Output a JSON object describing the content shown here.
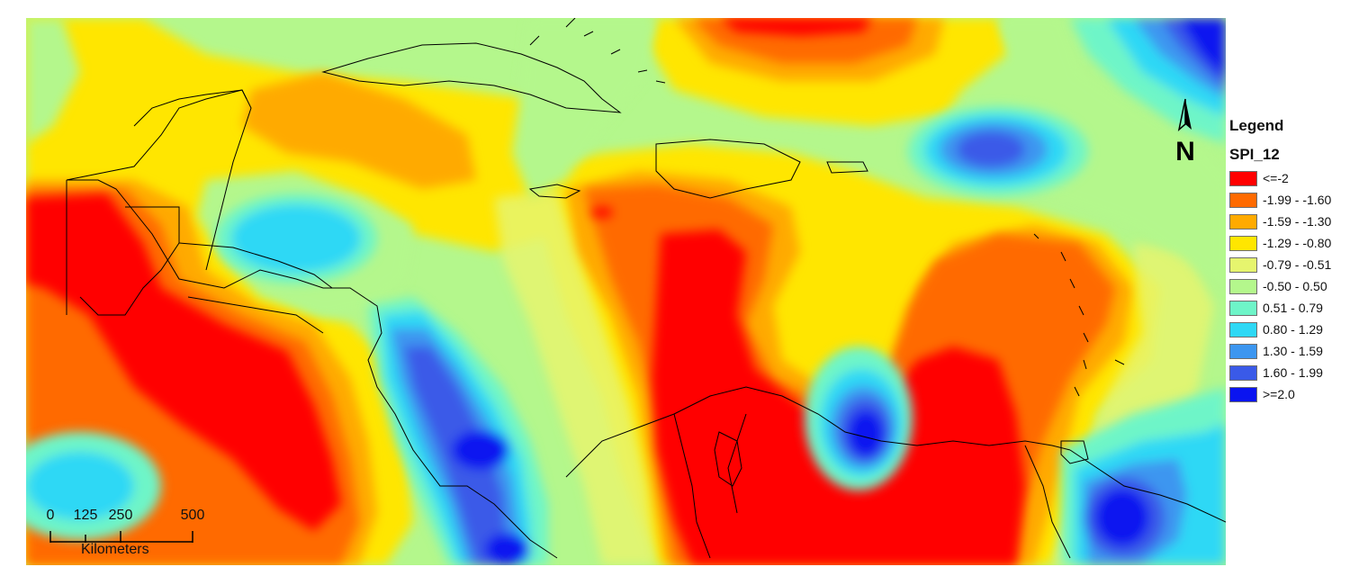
{
  "legend": {
    "title": "Legend",
    "field": "SPI_12",
    "classes": [
      {
        "label": "<=-2",
        "color": "#ff0000"
      },
      {
        "label": "-1.99 - -1.60",
        "color": "#ff6a00"
      },
      {
        "label": "-1.59 - -1.30",
        "color": "#ffaa00"
      },
      {
        "label": "-1.29 - -0.80",
        "color": "#ffe600"
      },
      {
        "label": "-0.79 - -0.51",
        "color": "#e6f56e"
      },
      {
        "label": "-0.50 - 0.50",
        "color": "#b4f78c"
      },
      {
        "label": "0.51 - 0.79",
        "color": "#6ef5c8"
      },
      {
        "label": "0.80 - 1.29",
        "color": "#2ed8f5"
      },
      {
        "label": "1.30 - 1.59",
        "color": "#3c96f0"
      },
      {
        "label": "1.60 - 1.99",
        "color": "#3a5ae8"
      },
      {
        "label": ">=2.0",
        "color": "#0a14f0"
      }
    ]
  },
  "north_arrow": {
    "label": "N"
  },
  "scale_bar": {
    "ticks": [
      "0",
      "125",
      "250",
      "500"
    ],
    "units": "Kilometers"
  }
}
